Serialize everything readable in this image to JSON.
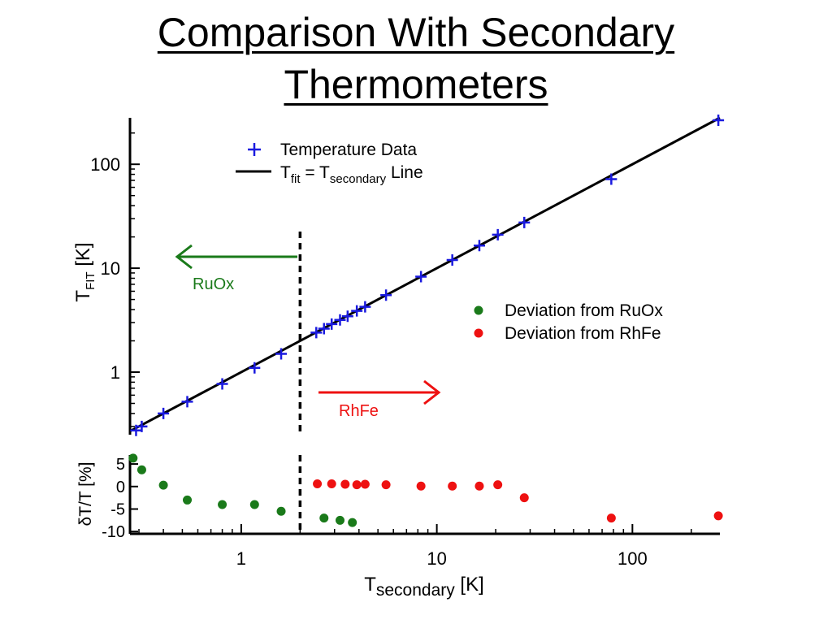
{
  "title": {
    "line1": "Comparison With Secondary",
    "line2": "Thermometers"
  },
  "colors": {
    "data": "#1a1adf",
    "line": "#000000",
    "ruox": "#1a7a1a",
    "rhfe": "#ee1111"
  },
  "chart_data": [
    {
      "type": "scatter",
      "xscale": "log",
      "yscale": "log",
      "xlim": [
        0.27,
        280
      ],
      "ylim": [
        0.25,
        280
      ],
      "y_ticks": [
        "1",
        "10",
        "100"
      ],
      "ylabel": {
        "main": "T",
        "sub": "FIT",
        "unit": " [K]"
      },
      "series": [
        {
          "name": "Temperature Data",
          "x": [
            0.29,
            0.31,
            0.4,
            0.53,
            0.8,
            1.17,
            1.6,
            2.42,
            2.65,
            2.9,
            3.2,
            3.5,
            3.9,
            4.3,
            5.5,
            8.3,
            12.0,
            16.5,
            20.5,
            28.0,
            78.0,
            275.0
          ],
          "y": [
            0.275,
            0.3,
            0.4,
            0.52,
            0.77,
            1.1,
            1.5,
            2.4,
            2.62,
            2.9,
            3.18,
            3.45,
            3.88,
            4.25,
            5.5,
            8.3,
            12.0,
            16.5,
            21.0,
            27.5,
            72.0,
            265.0
          ]
        },
        {
          "name": "Tfit = Tsecondary Line",
          "x": [
            0.27,
            280
          ],
          "y": [
            0.27,
            280
          ]
        }
      ],
      "legend": {
        "data_label": "Temperature Data",
        "line_label": {
          "a": "T",
          "a_sub": "fit",
          "b": " = T",
          "b_sub": "secondary",
          "c": " Line"
        }
      },
      "annotations": {
        "ruox": "RuOx",
        "rhfe": "RhFe"
      },
      "divider_x": 2.0
    },
    {
      "type": "scatter",
      "xscale": "log",
      "xlim": [
        0.27,
        280
      ],
      "ylim": [
        -10.5,
        7
      ],
      "x_ticks": [
        "1",
        "10",
        "100"
      ],
      "y_ticks": [
        "5",
        "0",
        "-5",
        "-10"
      ],
      "xlabel": {
        "main": "T",
        "sub": "secondary",
        "unit": " [K]"
      },
      "ylabel": "δT/T [%]",
      "series": [
        {
          "name": "Deviation from RuOx",
          "x": [
            0.28,
            0.31,
            0.4,
            0.53,
            0.8,
            1.17,
            1.6,
            2.65,
            3.2,
            3.7
          ],
          "y": [
            6.3,
            3.7,
            0.3,
            -3.0,
            -4.0,
            -4.0,
            -5.5,
            -7.0,
            -7.5,
            -8.0
          ]
        },
        {
          "name": "Deviation from RhFe",
          "x": [
            2.45,
            2.9,
            3.4,
            3.9,
            4.3,
            5.5,
            8.3,
            12.0,
            16.5,
            20.5,
            28.0,
            78.0,
            275.0
          ],
          "y": [
            0.6,
            0.6,
            0.5,
            0.4,
            0.5,
            0.4,
            0.1,
            0.1,
            0.1,
            0.4,
            -2.5,
            -7.0,
            -6.5
          ]
        }
      ],
      "legend": [
        "Deviation from RuOx",
        "Deviation from RhFe"
      ]
    }
  ]
}
